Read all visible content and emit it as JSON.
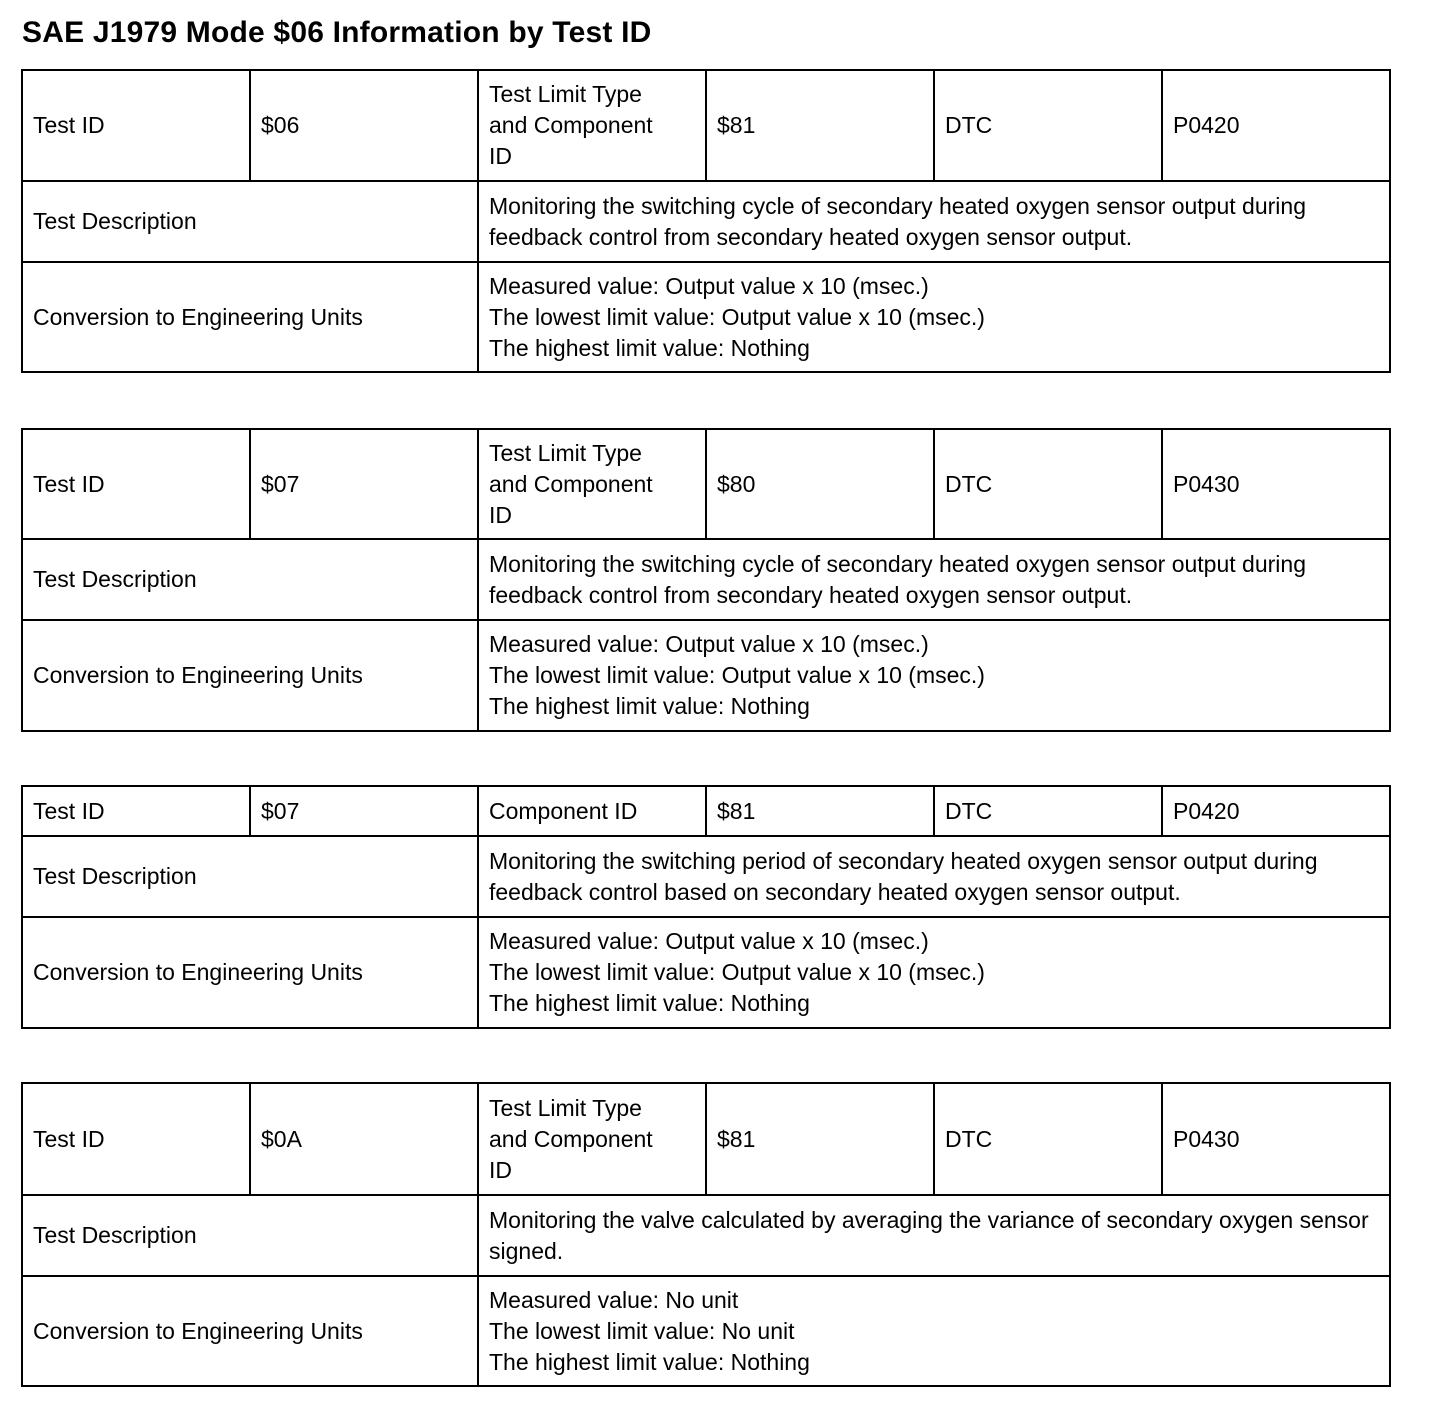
{
  "title": "SAE J1979 Mode $06 Information by Test ID",
  "tables": [
    {
      "test_id_label": "Test ID",
      "test_id": "$06",
      "limit_label": "Test Limit Type\n and Component\n ID",
      "limit_value": "$81",
      "dtc_label": "DTC",
      "dtc": "P0420",
      "desc_label": "Test Description",
      "desc": "Monitoring the switching cycle of secondary heated oxygen sensor output during feedback control from secondary heated oxygen sensor output.",
      "conv_label": "Conversion to Engineering Units",
      "conv": [
        "Measured value: Output value x 10 (msec.)",
        "The lowest limit value: Output value x 10 (msec.)",
        "The highest limit value: Nothing"
      ]
    },
    {
      "test_id_label": "Test ID",
      "test_id": "$07",
      "limit_label": "Test Limit Type\n and Component\n ID",
      "limit_value": "$80",
      "dtc_label": "DTC",
      "dtc": "P0430",
      "desc_label": "Test Description",
      "desc": "Monitoring the switching cycle of secondary heated oxygen sensor output during feedback control from secondary heated oxygen sensor output.",
      "conv_label": "Conversion to Engineering Units",
      "conv": [
        "Measured value: Output value x 10 (msec.)",
        "The lowest limit value: Output value x 10 (msec.)",
        "The highest limit value: Nothing"
      ]
    },
    {
      "test_id_label": "Test ID",
      "test_id": "$07",
      "limit_label": "Component ID",
      "limit_value": "$81",
      "dtc_label": "DTC",
      "dtc": "P0420",
      "desc_label": "Test Description",
      "desc": "Monitoring the switching period of secondary heated oxygen sensor output during feedback control based on secondary heated oxygen sensor output.",
      "conv_label": "Conversion to Engineering Units",
      "conv": [
        "Measured value: Output value x 10 (msec.)",
        "The lowest limit value: Output value x 10 (msec.)",
        "The highest limit value: Nothing"
      ]
    },
    {
      "test_id_label": "Test ID",
      "test_id": "$0A",
      "limit_label": "Test Limit Type\n and Component\n ID",
      "limit_value": "$81",
      "dtc_label": "DTC",
      "dtc": "P0430",
      "desc_label": "Test Description",
      "desc": "Monitoring the valve calculated by averaging the variance of secondary oxygen sensor signed.",
      "conv_label": "Conversion to Engineering Units",
      "conv": [
        "Measured value: No unit",
        "The lowest limit value: No unit",
        "The highest limit value: Nothing"
      ]
    }
  ]
}
